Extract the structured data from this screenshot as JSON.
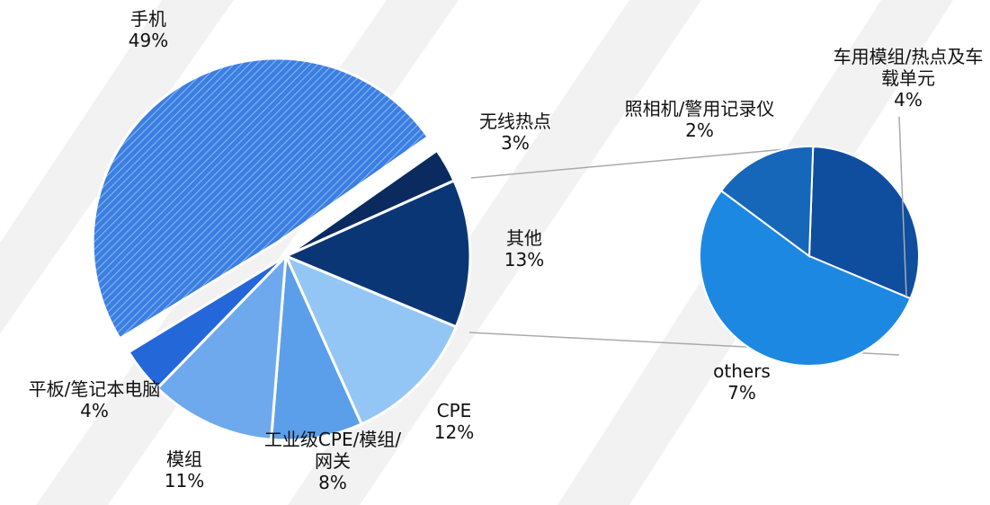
{
  "chart_data": {
    "type": "pie-of-pie",
    "categories": [
      "手机",
      "无线热点",
      "其他",
      "CPE",
      "工业级CPE/模组/网关",
      "模组",
      "平板/笔记本电脑"
    ],
    "values": [
      49,
      3,
      13,
      12,
      8,
      11,
      4
    ],
    "value_labels": [
      "49%",
      "3%",
      "13%",
      "12%",
      "8%",
      "11%",
      "4%"
    ],
    "colors": [
      "#3b7fe2",
      "#0b2b60",
      "#0a3676",
      "#93c6f4",
      "#5b9ee9",
      "#6ea9ee",
      "#2367d9"
    ],
    "sub_categories": [
      "车用模组/热点及车载单元",
      "others",
      "照相机/警用记录仪"
    ],
    "sub_values": [
      4,
      7,
      2
    ],
    "sub_value_labels": [
      "4%",
      "7%",
      "2%"
    ],
    "sub_colors": [
      "#0f4d9f",
      "#1d88e2",
      "#1666b9"
    ]
  }
}
